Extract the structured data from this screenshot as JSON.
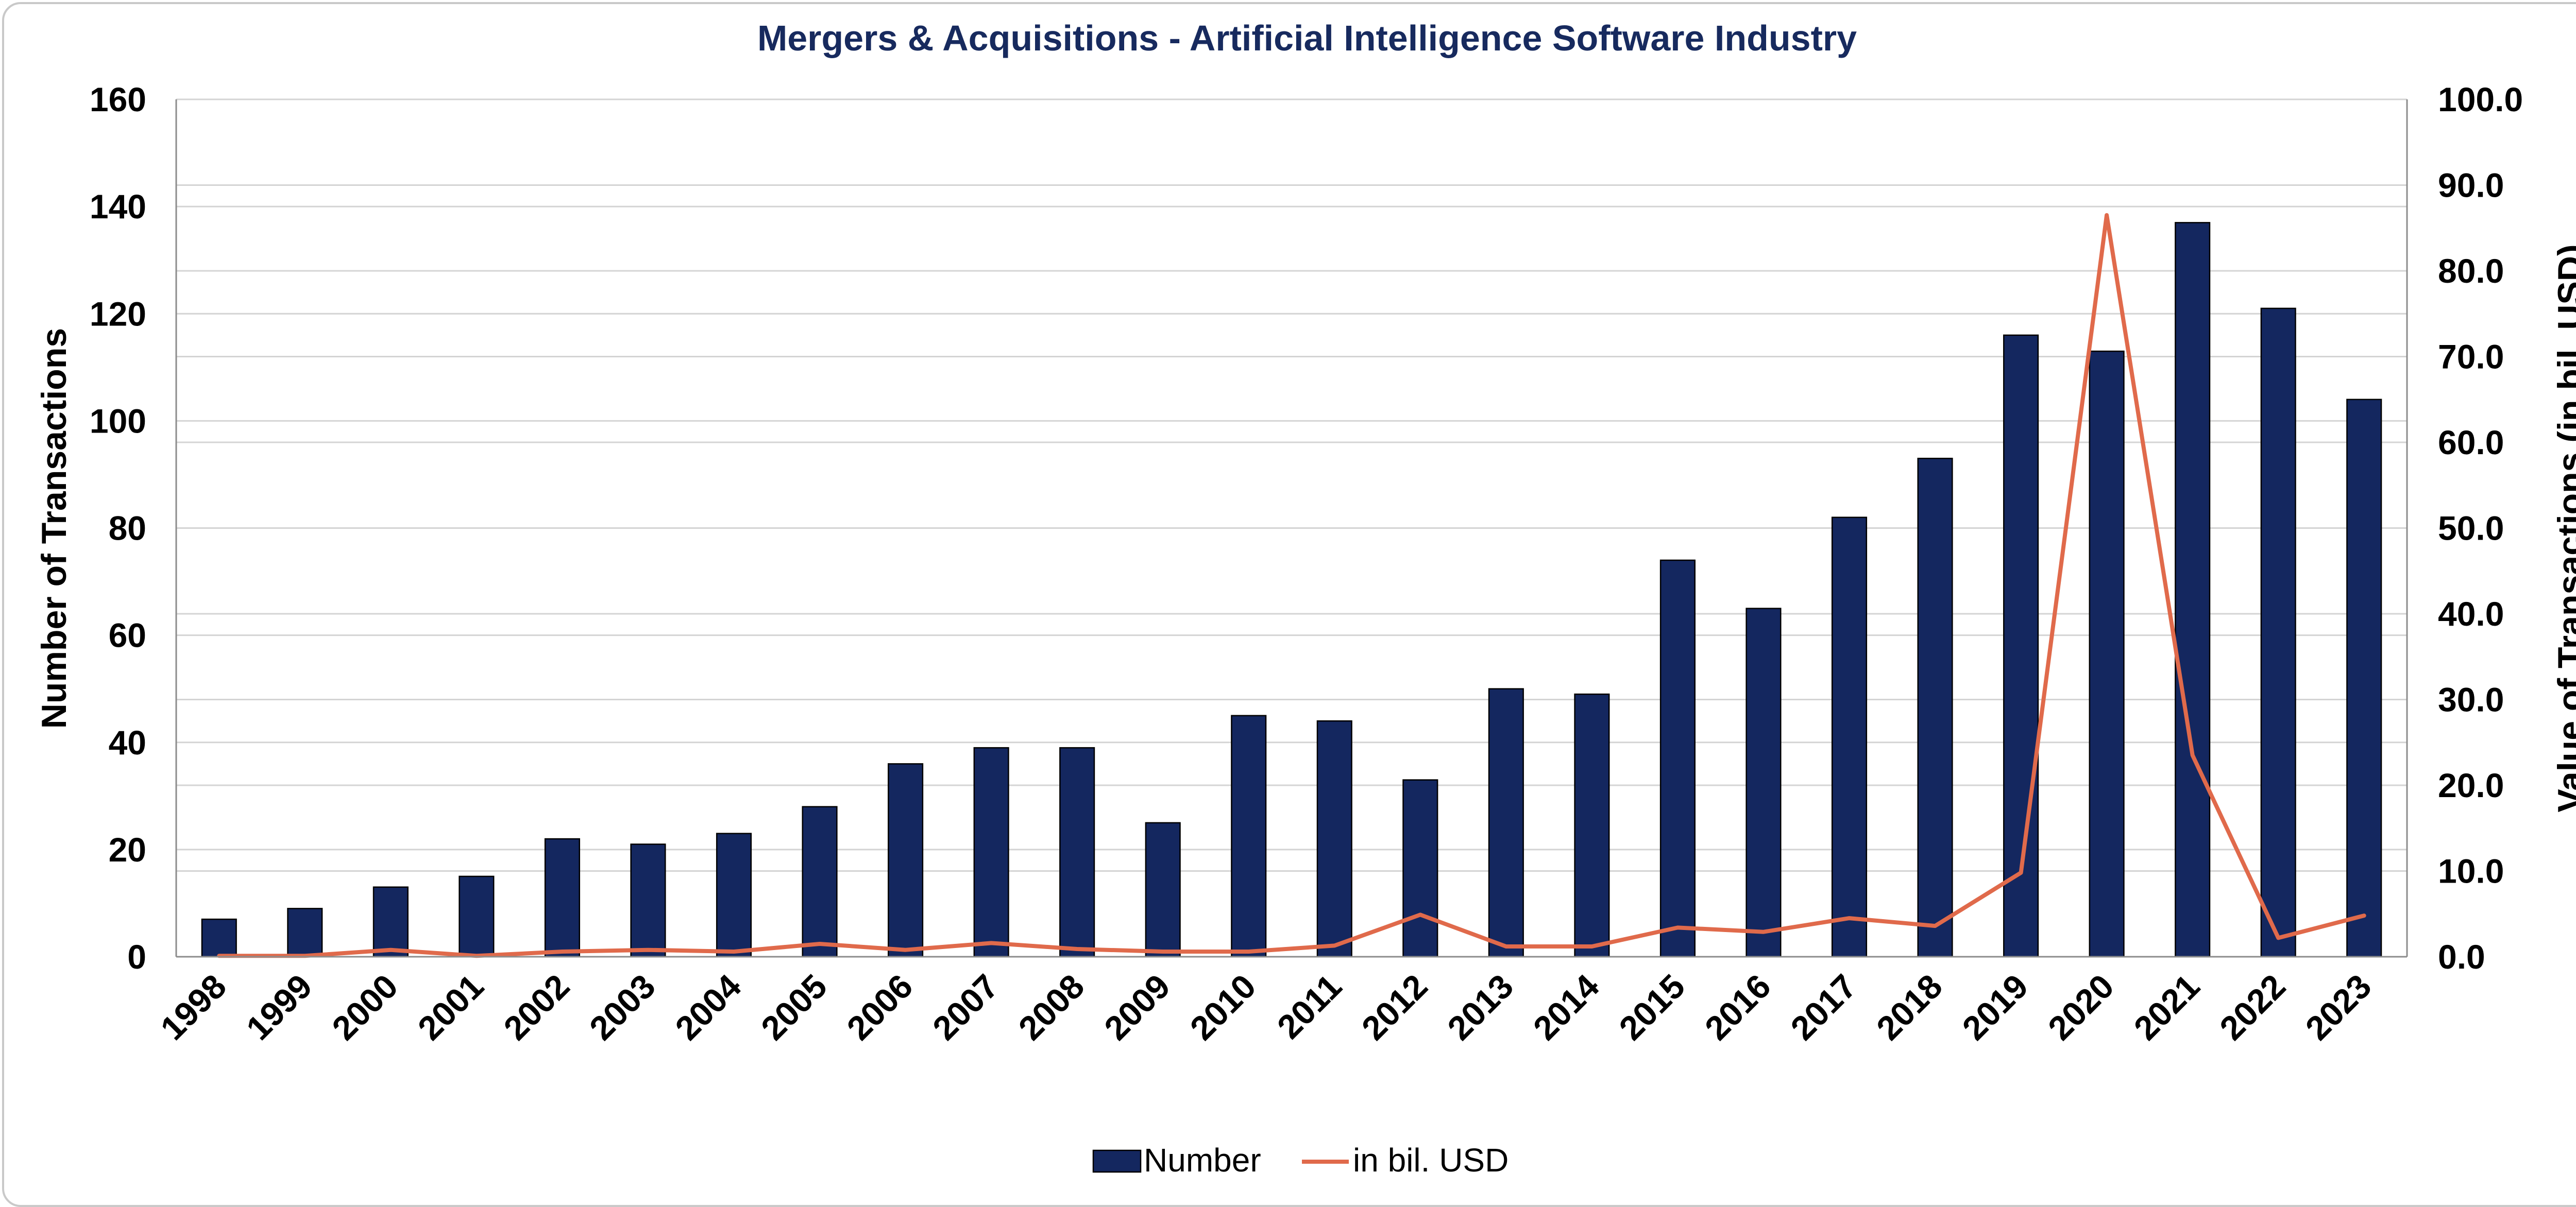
{
  "chart_data": {
    "type": "bar",
    "title": "Mergers & Acquisitions - Artificial Intelligence Software Industry",
    "ylabel": "Number of Transactions",
    "y2label": "Value of Transactions (in bil. USD)",
    "ylim": [
      0,
      160
    ],
    "y2lim": [
      0,
      100
    ],
    "yticks": [
      "0",
      "20",
      "40",
      "60",
      "80",
      "100",
      "120",
      "140",
      "160"
    ],
    "y2ticks": [
      "0.0",
      "10.0",
      "20.0",
      "30.0",
      "40.0",
      "50.0",
      "60.0",
      "70.0",
      "80.0",
      "90.0",
      "100.0"
    ],
    "categories": [
      "1998",
      "1999",
      "2000",
      "2001",
      "2002",
      "2003",
      "2004",
      "2005",
      "2006",
      "2007",
      "2008",
      "2009",
      "2010",
      "2011",
      "2012",
      "2013",
      "2014",
      "2015",
      "2016",
      "2017",
      "2018",
      "2019",
      "2020",
      "2021",
      "2022",
      "2023"
    ],
    "series": [
      {
        "name": "Number",
        "type": "bar",
        "axis": "left",
        "color": "#14275f",
        "values": [
          7,
          9,
          13,
          15,
          22,
          21,
          23,
          28,
          36,
          39,
          39,
          25,
          45,
          44,
          33,
          50,
          49,
          74,
          65,
          82,
          93,
          116,
          113,
          137,
          121,
          104
        ]
      },
      {
        "name": "in bil. USD",
        "type": "line",
        "axis": "right",
        "color": "#e06a4b",
        "values": [
          0.1,
          0.1,
          0.8,
          0.1,
          0.6,
          0.8,
          0.6,
          1.5,
          0.8,
          1.6,
          0.9,
          0.6,
          0.6,
          1.3,
          4.9,
          1.2,
          1.2,
          3.4,
          2.9,
          4.5,
          3.6,
          9.8,
          86.5,
          23.5,
          2.2,
          4.8
        ]
      }
    ],
    "grid": true,
    "legend": "bottom-center"
  }
}
